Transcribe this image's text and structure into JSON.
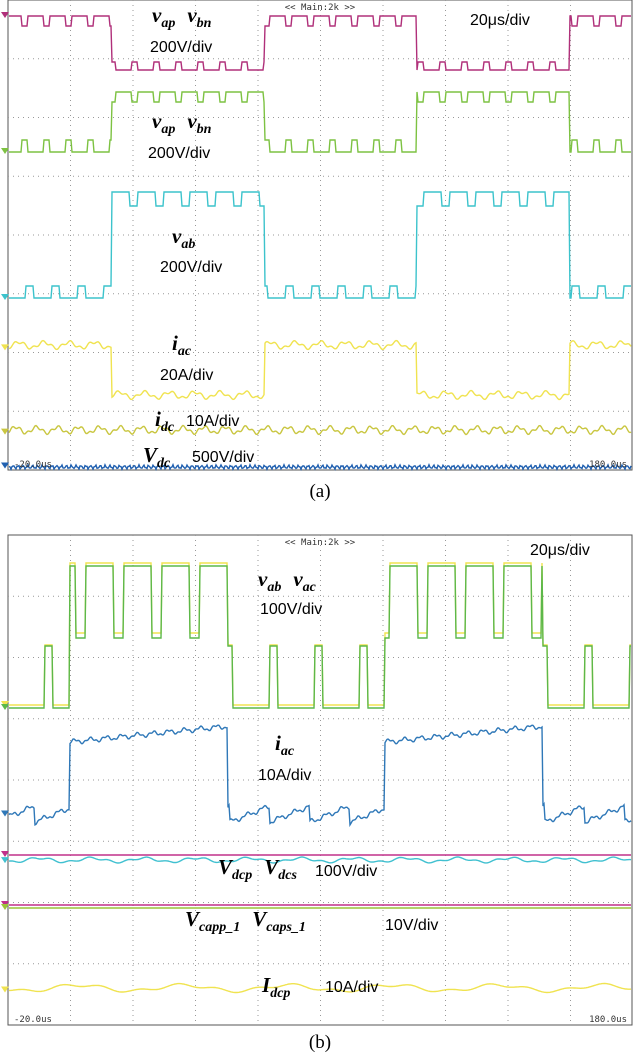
{
  "panels": [
    {
      "header": "<< Main:2k >>",
      "timebase": "20μs/div",
      "time_start": "-20.0us",
      "time_end": "180.0us",
      "caption": "(a)",
      "labels": [
        {
          "signals": [
            {
              "symbol": "v",
              "subscript": "ap"
            },
            {
              "symbol": "v",
              "subscript": "bn"
            }
          ],
          "scale": "200V/div"
        },
        {
          "signals": [
            {
              "symbol": "v",
              "subscript": "ap"
            },
            {
              "symbol": "v",
              "subscript": "bn"
            }
          ],
          "scale": "200V/div"
        },
        {
          "signals": [
            {
              "symbol": "v",
              "subscript": "ab"
            }
          ],
          "scale": "200V/div"
        },
        {
          "signals": [
            {
              "symbol": "i",
              "subscript": "ac"
            }
          ],
          "scale": "20A/div"
        },
        {
          "signals": [
            {
              "symbol": "i",
              "subscript": "dc"
            }
          ],
          "scale": "10A/div"
        },
        {
          "signals": [
            {
              "symbol": "V",
              "subscript": "dc"
            }
          ],
          "scale": "500V/div"
        }
      ]
    },
    {
      "header": "<< Main:2k >>",
      "timebase": "20μs/div",
      "time_start": "-20.0us",
      "time_end": "180.0us",
      "caption": "(b)",
      "labels": [
        {
          "signals": [
            {
              "symbol": "v",
              "subscript": "ab"
            },
            {
              "symbol": "v",
              "subscript": "ac"
            }
          ],
          "scale": "100V/div"
        },
        {
          "signals": [
            {
              "symbol": "i",
              "subscript": "ac"
            }
          ],
          "scale": "10A/div"
        },
        {
          "signals": [
            {
              "symbol": "V",
              "subscript": "dcp"
            },
            {
              "symbol": "V",
              "subscript": "dcs"
            }
          ],
          "scale": "100V/div"
        },
        {
          "signals": [
            {
              "symbol": "V",
              "subscript": "capp_1"
            },
            {
              "symbol": "V",
              "subscript": "caps_1"
            }
          ],
          "scale": "10V/div"
        },
        {
          "signals": [
            {
              "symbol": "I",
              "subscript": "dcp"
            }
          ],
          "scale": "10A/div"
        }
      ]
    }
  ]
}
